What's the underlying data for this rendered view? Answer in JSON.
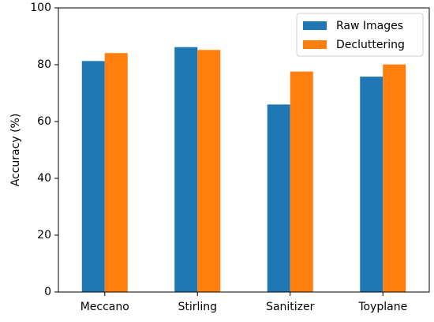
{
  "chart_data": {
    "type": "bar",
    "title": "",
    "xlabel": "",
    "ylabel": "Accuracy (%)",
    "ylim": [
      0,
      100
    ],
    "yticks": [
      0,
      20,
      40,
      60,
      80,
      100
    ],
    "grid": false,
    "legend_position": "top-right",
    "categories": [
      "Meccano",
      "Stirling",
      "Sanitizer",
      "Toyplane"
    ],
    "series": [
      {
        "name": "Raw Images",
        "color": "#1f77b4",
        "values": [
          81.3,
          86.2,
          66.0,
          75.8
        ]
      },
      {
        "name": "Decluttering",
        "color": "#ff7f0e",
        "values": [
          84.1,
          85.2,
          77.6,
          80.1
        ]
      }
    ]
  }
}
